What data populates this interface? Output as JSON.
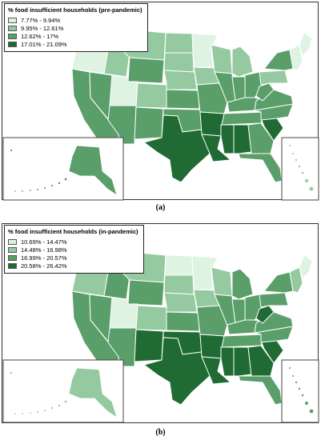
{
  "colors": {
    "c1": "#dff3e3",
    "c2": "#95c9a0",
    "c3": "#5a9e6a",
    "c4": "#1f6b33"
  },
  "panels": [
    {
      "id": "a",
      "caption": "(a)",
      "legend_title": "% food insufficient households (pre-pandemic)",
      "legend": [
        {
          "label": "7.77% - 9.94%",
          "color": "#dff3e3"
        },
        {
          "label": "9.95% - 12.61%",
          "color": "#95c9a0"
        },
        {
          "label": "12.62% - 17%",
          "color": "#5a9e6a"
        },
        {
          "label": "17.01% - 21.09%",
          "color": "#1f6b33"
        }
      ],
      "regions": {
        "wa": "c1",
        "or": "c1",
        "ca": "c3",
        "nv": "c3",
        "id": "c2",
        "mt": "c2",
        "wy": "c3",
        "ut": "c1",
        "az": "c3",
        "co": "c2",
        "nm": "c3",
        "nd": "c2",
        "sd": "c2",
        "ne": "c2",
        "ks": "c3",
        "ok": "c3",
        "tx": "c4",
        "mn": "c1",
        "ia": "c2",
        "mo": "c3",
        "ar": "c4",
        "la": "c4",
        "wi": "c2",
        "il": "c3",
        "mi": "c2",
        "in": "c3",
        "oh": "c3",
        "ky": "c3",
        "tn": "c3",
        "ms": "c4",
        "al": "c4",
        "ga": "c3",
        "fl": "c3",
        "sc": "c4",
        "nc": "c3",
        "va": "c3",
        "wv": "c3",
        "pa": "c2",
        "ny": "c3",
        "ne_states": "c1",
        "me": "c1",
        "ak": "c3",
        "hi": "c2"
      }
    },
    {
      "id": "b",
      "caption": "(b)",
      "legend_title": "% food insufficient households (in-pandemic)",
      "legend": [
        {
          "label": "10.69% - 14.47%",
          "color": "#dff3e3"
        },
        {
          "label": "14.48% - 16.98%",
          "color": "#95c9a0"
        },
        {
          "label": "16.99% - 20.57%",
          "color": "#5a9e6a"
        },
        {
          "label": "20.58% - 26.42%",
          "color": "#1f6b33"
        }
      ],
      "regions": {
        "wa": "c1",
        "or": "c2",
        "ca": "c3",
        "nv": "c3",
        "id": "c3",
        "mt": "c2",
        "wy": "c3",
        "ut": "c1",
        "az": "c3",
        "co": "c2",
        "nm": "c4",
        "nd": "c1",
        "sd": "c2",
        "ne": "c2",
        "ks": "c3",
        "ok": "c4",
        "tx": "c4",
        "mn": "c1",
        "ia": "c2",
        "mo": "c3",
        "ar": "c4",
        "la": "c4",
        "wi": "c2",
        "il": "c3",
        "mi": "c3",
        "in": "c3",
        "oh": "c3",
        "ky": "c3",
        "tn": "c3",
        "ms": "c4",
        "al": "c4",
        "ga": "c4",
        "fl": "c3",
        "sc": "c4",
        "nc": "c3",
        "va": "c3",
        "wv": "c4",
        "pa": "c3",
        "ny": "c3",
        "ne_states": "c2",
        "me": "c1",
        "ak": "c2",
        "hi": "c3"
      }
    }
  ]
}
